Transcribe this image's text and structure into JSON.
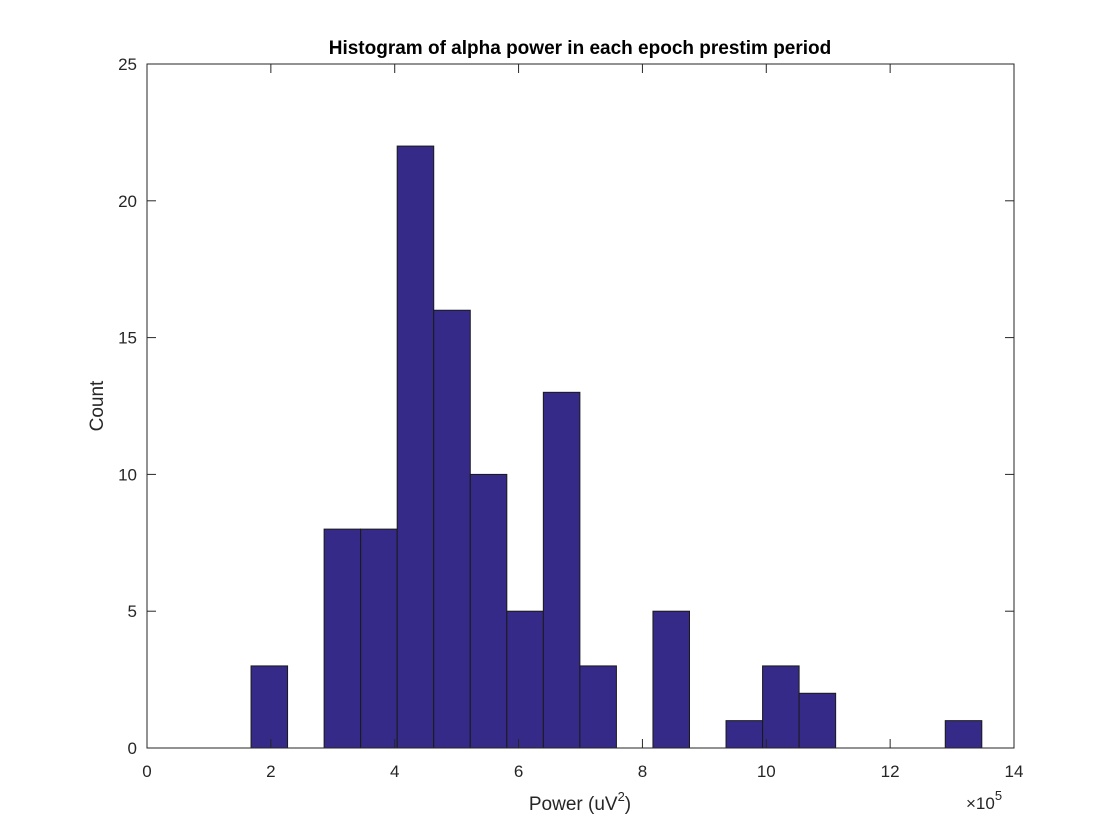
{
  "chart_data": {
    "type": "bar",
    "title": "Histogram of alpha power in each epoch prestim period",
    "xlabel": "Power (uV",
    "xlabel_superscript": "2",
    "xlabel_suffix": ")",
    "ylabel": "Count",
    "x_exponent_prefix": "×10",
    "x_exponent": "5",
    "xlim": [
      0,
      1400000
    ],
    "ylim": [
      0,
      25
    ],
    "x_ticks": [
      0,
      200000,
      400000,
      600000,
      800000,
      1000000,
      1200000,
      1400000
    ],
    "x_tick_labels": [
      "0",
      "2",
      "4",
      "6",
      "8",
      "10",
      "12",
      "14"
    ],
    "y_ticks": [
      0,
      5,
      10,
      15,
      20,
      25
    ],
    "y_tick_labels": [
      "0",
      "5",
      "10",
      "15",
      "20",
      "25"
    ],
    "bar_color": "#352a87",
    "bin_edges": [
      168000,
      227000,
      286000,
      345000,
      404000,
      463000,
      522000,
      581000,
      640000,
      699000,
      758000,
      817000,
      876000,
      935000,
      994000,
      1053000,
      1112000,
      1171000,
      1230000,
      1289000,
      1348000
    ],
    "counts": [
      3,
      0,
      8,
      8,
      22,
      16,
      10,
      5,
      13,
      3,
      0,
      5,
      0,
      1,
      3,
      2,
      0,
      0,
      0,
      1
    ],
    "grid": false,
    "box": true
  }
}
